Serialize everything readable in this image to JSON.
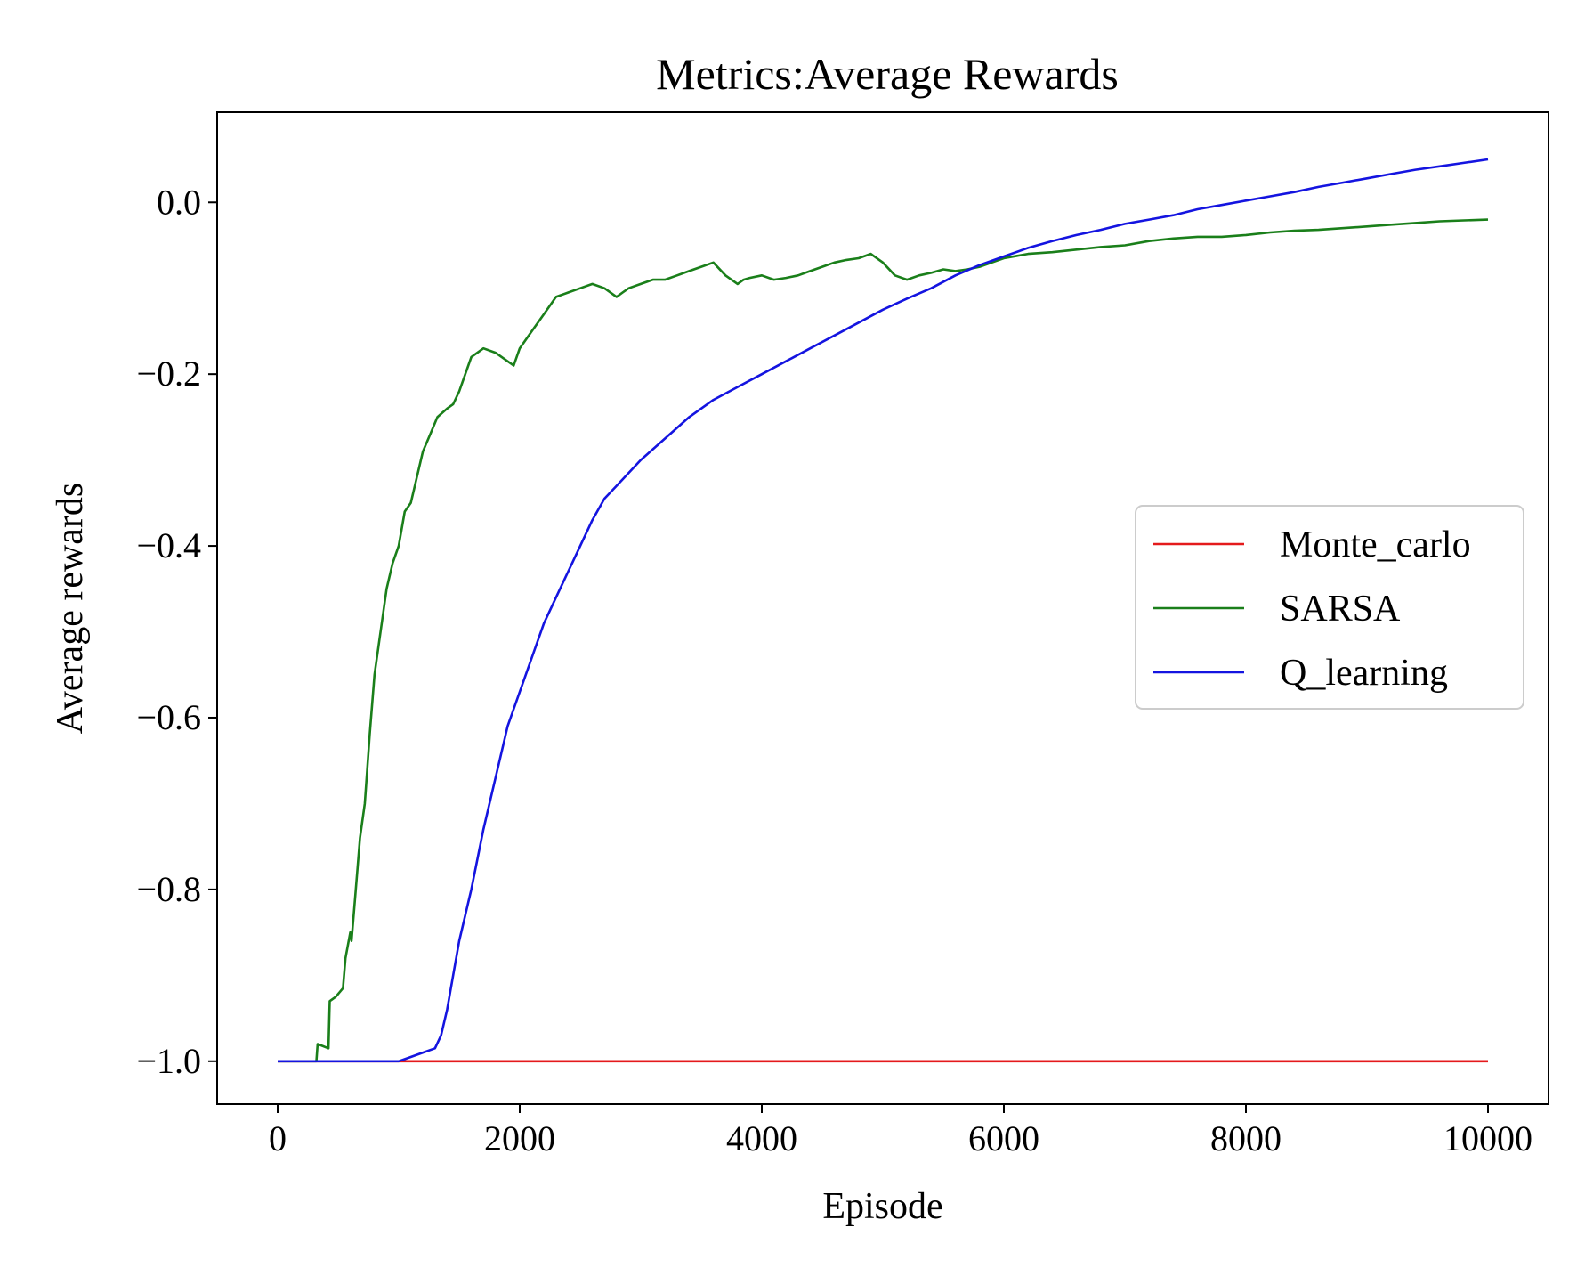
{
  "chart_data": {
    "type": "line",
    "title": "Metrics:Average Rewards",
    "xlabel": "Episode",
    "ylabel": "Average rewards",
    "xlim": [
      -500,
      10500
    ],
    "ylim": [
      -1.05,
      0.105
    ],
    "xticks": [
      0,
      2000,
      4000,
      6000,
      8000,
      10000
    ],
    "xtick_labels": [
      "0",
      "2000",
      "4000",
      "6000",
      "8000",
      "10000"
    ],
    "yticks": [
      -1.0,
      -0.8,
      -0.6,
      -0.4,
      -0.2,
      0.0
    ],
    "ytick_labels": [
      "−1.0",
      "−0.8",
      "−0.6",
      "−0.4",
      "−0.2",
      "0.0"
    ],
    "grid": false,
    "legend": "center-right",
    "series": [
      {
        "name": "Monte_carlo",
        "color": "#e41a1c",
        "x": [
          0,
          10000
        ],
        "y": [
          -1.0,
          -1.0
        ]
      },
      {
        "name": "SARSA",
        "color": "#1a7f1a",
        "x": [
          0,
          320,
          330,
          420,
          430,
          480,
          540,
          560,
          600,
          610,
          640,
          680,
          720,
          760,
          800,
          850,
          900,
          950,
          1000,
          1050,
          1100,
          1150,
          1200,
          1260,
          1320,
          1400,
          1450,
          1500,
          1550,
          1600,
          1700,
          1800,
          1900,
          1950,
          2000,
          2100,
          2200,
          2300,
          2400,
          2500,
          2600,
          2700,
          2800,
          2850,
          2900,
          3000,
          3100,
          3200,
          3300,
          3400,
          3500,
          3600,
          3700,
          3800,
          3850,
          3900,
          4000,
          4100,
          4200,
          4300,
          4400,
          4500,
          4600,
          4700,
          4800,
          4900,
          5000,
          5100,
          5200,
          5300,
          5400,
          5500,
          5600,
          5700,
          5800,
          5900,
          6000,
          6200,
          6400,
          6600,
          6800,
          7000,
          7200,
          7400,
          7600,
          7800,
          8000,
          8200,
          8400,
          8600,
          8800,
          9000,
          9200,
          9400,
          9600,
          9800,
          10000
        ],
        "y": [
          -1.0,
          -1.0,
          -0.98,
          -0.985,
          -0.93,
          -0.925,
          -0.915,
          -0.88,
          -0.85,
          -0.86,
          -0.81,
          -0.74,
          -0.7,
          -0.62,
          -0.55,
          -0.5,
          -0.45,
          -0.42,
          -0.4,
          -0.36,
          -0.35,
          -0.32,
          -0.29,
          -0.27,
          -0.25,
          -0.24,
          -0.235,
          -0.22,
          -0.2,
          -0.18,
          -0.17,
          -0.175,
          -0.185,
          -0.19,
          -0.17,
          -0.15,
          -0.13,
          -0.11,
          -0.105,
          -0.1,
          -0.095,
          -0.1,
          -0.11,
          -0.105,
          -0.1,
          -0.095,
          -0.09,
          -0.09,
          -0.085,
          -0.08,
          -0.075,
          -0.07,
          -0.085,
          -0.095,
          -0.09,
          -0.088,
          -0.085,
          -0.09,
          -0.088,
          -0.085,
          -0.08,
          -0.075,
          -0.07,
          -0.067,
          -0.065,
          -0.06,
          -0.07,
          -0.085,
          -0.09,
          -0.085,
          -0.082,
          -0.078,
          -0.08,
          -0.078,
          -0.075,
          -0.07,
          -0.065,
          -0.06,
          -0.058,
          -0.055,
          -0.052,
          -0.05,
          -0.045,
          -0.042,
          -0.04,
          -0.04,
          -0.038,
          -0.035,
          -0.033,
          -0.032,
          -0.03,
          -0.028,
          -0.026,
          -0.024,
          -0.022,
          -0.021,
          -0.02
        ]
      },
      {
        "name": "Q_learning",
        "color": "#1414e0",
        "x": [
          0,
          1000,
          1100,
          1200,
          1300,
          1350,
          1400,
          1450,
          1500,
          1550,
          1600,
          1700,
          1800,
          1900,
          2000,
          2100,
          2200,
          2300,
          2400,
          2500,
          2600,
          2700,
          2800,
          2900,
          3000,
          3200,
          3400,
          3600,
          3800,
          4000,
          4200,
          4400,
          4600,
          4800,
          5000,
          5200,
          5400,
          5600,
          5800,
          6000,
          6200,
          6400,
          6600,
          6800,
          7000,
          7200,
          7400,
          7600,
          7800,
          8000,
          8200,
          8400,
          8600,
          8800,
          9000,
          9200,
          9400,
          9600,
          9800,
          10000
        ],
        "y": [
          -1.0,
          -1.0,
          -0.995,
          -0.99,
          -0.985,
          -0.97,
          -0.94,
          -0.9,
          -0.86,
          -0.83,
          -0.8,
          -0.73,
          -0.67,
          -0.61,
          -0.57,
          -0.53,
          -0.49,
          -0.46,
          -0.43,
          -0.4,
          -0.37,
          -0.345,
          -0.33,
          -0.315,
          -0.3,
          -0.275,
          -0.25,
          -0.23,
          -0.215,
          -0.2,
          -0.185,
          -0.17,
          -0.155,
          -0.14,
          -0.125,
          -0.112,
          -0.1,
          -0.085,
          -0.073,
          -0.063,
          -0.053,
          -0.045,
          -0.038,
          -0.032,
          -0.025,
          -0.02,
          -0.015,
          -0.008,
          -0.003,
          0.002,
          0.007,
          0.012,
          0.018,
          0.023,
          0.028,
          0.033,
          0.038,
          0.042,
          0.046,
          0.05
        ]
      }
    ]
  }
}
